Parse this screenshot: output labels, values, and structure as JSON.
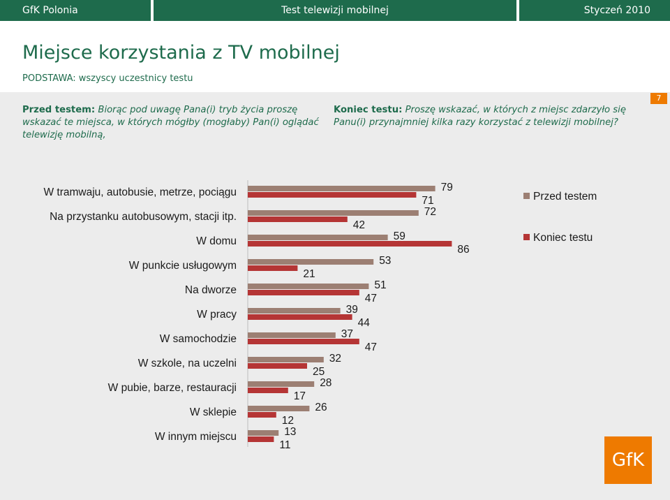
{
  "topbar": {
    "left": "GfK Polonia",
    "center": "Test telewizji mobilnej",
    "right": "Styczeń 2010"
  },
  "header": {
    "title": "Miejsce korzystania z TV mobilnej",
    "subtitle": "PODSTAWA: wszyscy uczestnicy testu"
  },
  "questions": {
    "before_label": "Przed testem:",
    "before_text": "Biorąc pod uwagę Pana(i) tryb życia proszę wskazać te miejsca, w których mógłby (mogłaby) Pan(i) oglądać telewizję mobilną,",
    "after_label": "Koniec testu:",
    "after_text": "Proszę wskazać, w których z miejsc zdarzyło się Panu(i) przynajmniej kilka razy korzystać z telewizji mobilnej?"
  },
  "page_number": "7",
  "logo_text": "GfK",
  "colors": {
    "brand_green": "#1e6b4c",
    "brand_orange": "#ee7a00",
    "series_before": "#9c7f73",
    "series_after": "#b53535"
  },
  "chart_data": {
    "type": "bar",
    "orientation": "horizontal",
    "categories": [
      "W tramwaju, autobusie, metrze, pociągu",
      "Na przystanku autobusowym, stacji itp.",
      "W domu",
      "W punkcie usługowym",
      "Na dworze",
      "W pracy",
      "W samochodzie",
      "W szkole, na uczelni",
      "W pubie, barze, restauracji",
      "W sklepie",
      "W innym miejscu"
    ],
    "series": [
      {
        "name": "Przed testem",
        "values": [
          79,
          72,
          59,
          53,
          51,
          39,
          37,
          32,
          28,
          26,
          13
        ]
      },
      {
        "name": "Koniec testu",
        "values": [
          71,
          42,
          86,
          21,
          47,
          44,
          47,
          25,
          17,
          12,
          11
        ]
      }
    ],
    "legend_position": "top-right",
    "grid": false
  }
}
